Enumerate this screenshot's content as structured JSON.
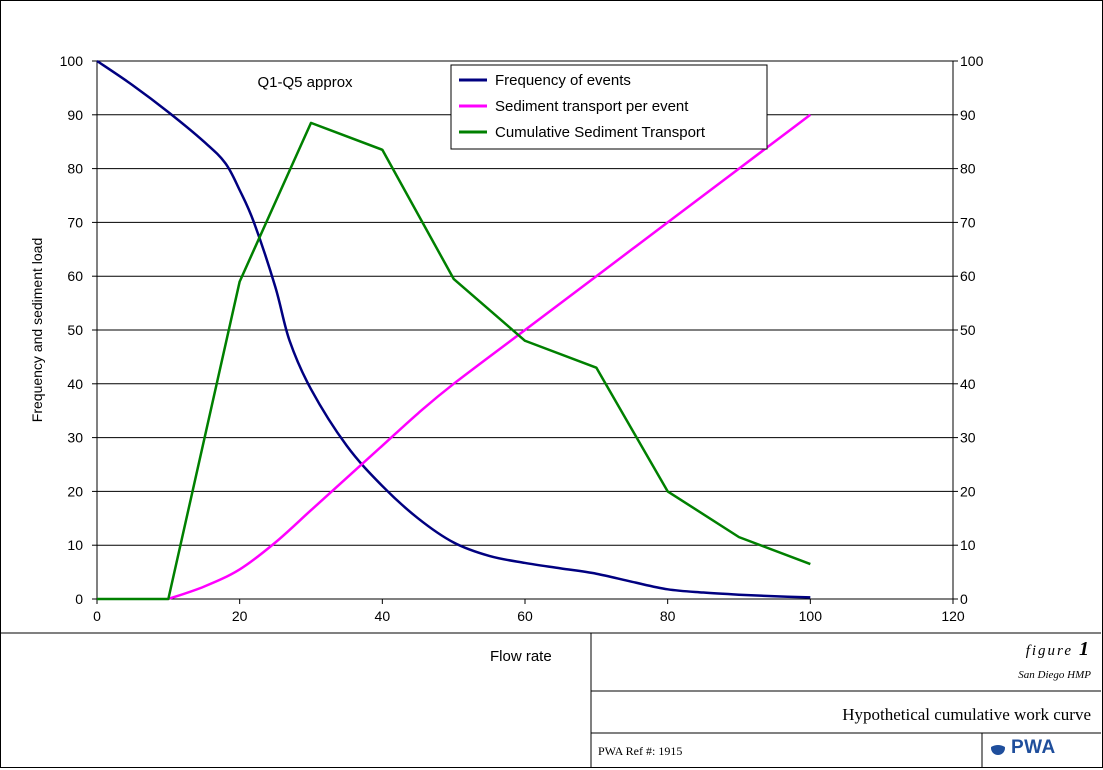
{
  "chart_data": {
    "type": "line",
    "title": "",
    "xlabel": "Flow rate",
    "ylabel": "Frequency and sediment load",
    "xlim": [
      0,
      120
    ],
    "ylim": [
      0,
      100
    ],
    "y2lim": [
      0,
      100
    ],
    "x_ticks": [
      0,
      20,
      40,
      60,
      80,
      100,
      120
    ],
    "y_ticks": [
      0,
      10,
      20,
      30,
      40,
      50,
      60,
      70,
      80,
      90,
      100
    ],
    "grid": "horizontal",
    "legend_position": "top-center",
    "annotation": "Q1-Q5 approx",
    "series": [
      {
        "name": "Frequency of events",
        "color": "#000080",
        "x": [
          0,
          5,
          10,
          15,
          18,
          20,
          22,
          25,
          27,
          30,
          35,
          40,
          45,
          50,
          55,
          60,
          65,
          70,
          75,
          80,
          85,
          90,
          95,
          100
        ],
        "values": [
          100,
          95.5,
          90.5,
          85,
          81,
          76,
          70,
          58,
          48,
          39,
          28.5,
          21,
          15,
          10.5,
          8,
          6.7,
          5.7,
          4.7,
          3.2,
          1.8,
          1.2,
          0.8,
          0.5,
          0.3
        ]
      },
      {
        "name": "Sediment transport per event",
        "color": "#ff00ff",
        "x": [
          10,
          15,
          20,
          25,
          30,
          35,
          40,
          45,
          50,
          60,
          70,
          80,
          90,
          100
        ],
        "values": [
          0,
          2.3,
          5.5,
          10.5,
          16.5,
          22.5,
          28.5,
          34.5,
          40,
          50,
          60,
          70,
          80,
          90
        ]
      },
      {
        "name": "Cumulative Sediment Transport",
        "color": "#008000",
        "x": [
          0,
          10,
          20,
          30,
          40,
          50,
          60,
          70,
          80,
          90,
          100
        ],
        "values": [
          0,
          0,
          59,
          88.5,
          83.5,
          59.5,
          48,
          43,
          20,
          11.5,
          6.5
        ]
      }
    ]
  },
  "title_block": {
    "figure_word": "figure",
    "figure_number": "1",
    "project": "San Diego HMP",
    "figure_title": "Hypothetical cumulative work curve",
    "ref": "PWA Ref #: 1915",
    "logo_text": "PWA"
  }
}
